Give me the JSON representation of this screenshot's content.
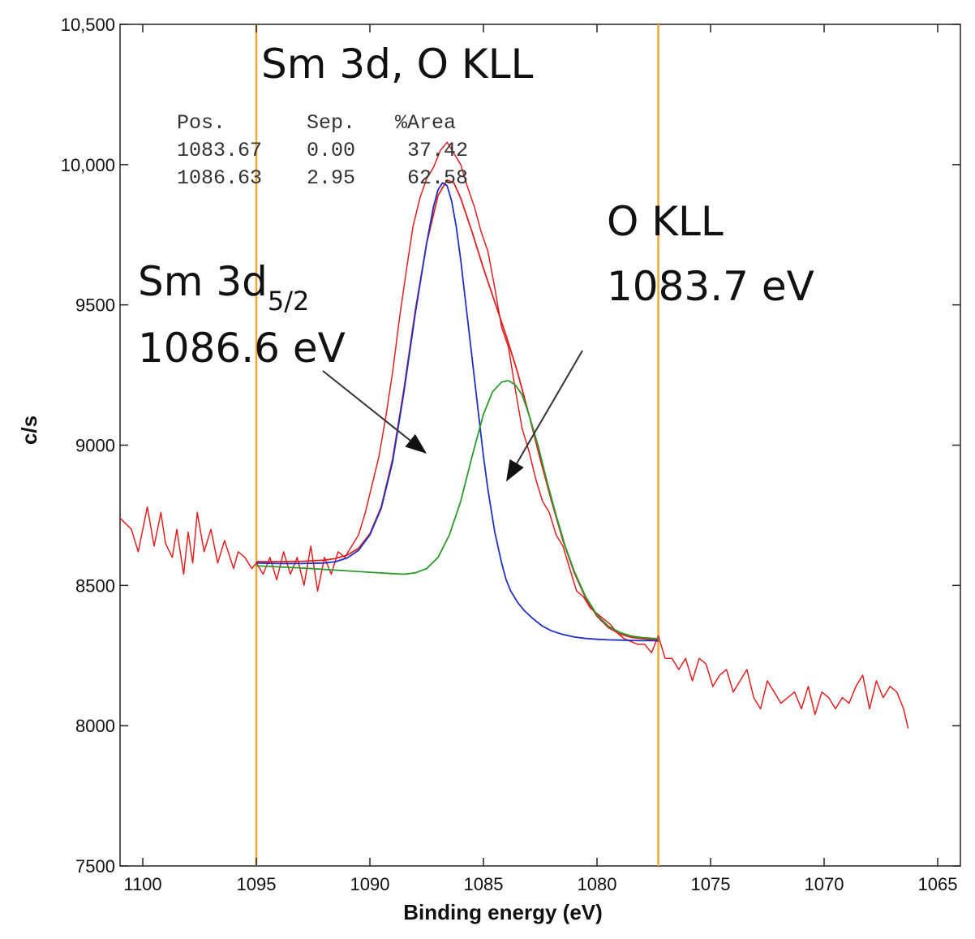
{
  "chart_data": {
    "type": "line",
    "title": "Sm 3d, O KLL",
    "xlabel": "Binding energy (eV)",
    "ylabel": "c/s",
    "xlim": [
      1101,
      1064
    ],
    "ylim": [
      7500,
      10500
    ],
    "x_reversed": true,
    "xticks": [
      1100,
      1095,
      1090,
      1085,
      1080,
      1075,
      1070,
      1065
    ],
    "yticks": [
      7500,
      8000,
      8500,
      9000,
      9500,
      10000,
      10500
    ],
    "ytick_labels": [
      "7500",
      "8000",
      "8500",
      "9000",
      "9500",
      "10,000",
      "10,500"
    ],
    "grid": false,
    "region_markers": [
      1095,
      1077.3
    ],
    "region_marker_color": "#f0a830",
    "fit_table": {
      "headers": [
        "Pos.",
        "Sep.",
        "%Area"
      ],
      "rows": [
        [
          "1083.67",
          "0.00",
          "37.42"
        ],
        [
          "1086.63",
          "2.95",
          "62.58"
        ]
      ]
    },
    "annotations": [
      {
        "text": "Sm 3d",
        "subscript": "5/2",
        "value": "1086.6 eV",
        "arrow_to": [
          1087.5,
          8970
        ]
      },
      {
        "text": "O KLL",
        "value": "1083.7 eV",
        "arrow_to": [
          1084,
          8870
        ]
      }
    ],
    "series": [
      {
        "role": "measured",
        "color": "#e02020",
        "x": [
          1101,
          1100.5,
          1100.2,
          1099.8,
          1099.5,
          1099.2,
          1099,
          1098.7,
          1098.5,
          1098.2,
          1098,
          1097.8,
          1097.6,
          1097.3,
          1097,
          1096.7,
          1096.4,
          1096,
          1095.8,
          1095.5,
          1095.2,
          1095,
          1094.7,
          1094.4,
          1094.1,
          1093.8,
          1093.5,
          1093.2,
          1092.9,
          1092.6,
          1092.3,
          1092,
          1091.7,
          1091.4,
          1091.1,
          1090.8,
          1090.5,
          1090.2,
          1089.9,
          1089.6,
          1089.3,
          1089,
          1088.7,
          1088.4,
          1088.1,
          1087.8,
          1087.5,
          1087.2,
          1086.9,
          1086.6,
          1086.3,
          1086,
          1085.7,
          1085.4,
          1085.1,
          1084.8,
          1084.5,
          1084.2,
          1083.9,
          1083.6,
          1083.3,
          1083,
          1082.7,
          1082.4,
          1082.1,
          1081.8,
          1081.5,
          1081.2,
          1080.9,
          1080.6,
          1080.3,
          1080,
          1079.7,
          1079.4,
          1079.1,
          1078.8,
          1078.5,
          1078.2,
          1077.9,
          1077.6,
          1077.3,
          1077,
          1076.7,
          1076.4,
          1076.1,
          1075.8,
          1075.5,
          1075.2,
          1074.9,
          1074.6,
          1074.3,
          1074,
          1073.7,
          1073.4,
          1073.1,
          1072.8,
          1072.5,
          1072.2,
          1071.9,
          1071.6,
          1071.3,
          1071,
          1070.7,
          1070.4,
          1070.1,
          1069.8,
          1069.5,
          1069.2,
          1068.9,
          1068.6,
          1068.3,
          1068,
          1067.7,
          1067.4,
          1067.1,
          1066.8,
          1066.5,
          1066.3
        ],
        "y": [
          8740,
          8700,
          8620,
          8780,
          8640,
          8760,
          8650,
          8600,
          8700,
          8540,
          8690,
          8580,
          8760,
          8620,
          8700,
          8580,
          8660,
          8560,
          8620,
          8600,
          8560,
          8580,
          8540,
          8600,
          8520,
          8620,
          8540,
          8600,
          8500,
          8640,
          8480,
          8600,
          8540,
          8620,
          8600,
          8640,
          8680,
          8760,
          8860,
          8960,
          9100,
          9260,
          9450,
          9620,
          9780,
          9880,
          9950,
          9990,
          10050,
          10080,
          10040,
          10000,
          9920,
          9850,
          9760,
          9690,
          9560,
          9420,
          9350,
          9200,
          9060,
          8980,
          8880,
          8800,
          8760,
          8680,
          8640,
          8560,
          8480,
          8460,
          8420,
          8400,
          8380,
          8360,
          8330,
          8310,
          8300,
          8290,
          8290,
          8260,
          8320,
          8240,
          8240,
          8200,
          8240,
          8160,
          8240,
          8220,
          8140,
          8180,
          8200,
          8120,
          8160,
          8200,
          8100,
          8060,
          8160,
          8120,
          8080,
          8100,
          8120,
          8060,
          8140,
          8040,
          8120,
          8100,
          8060,
          8100,
          8080,
          8140,
          8180,
          8060,
          8160,
          8100,
          8140,
          8120,
          8060,
          7990
        ]
      },
      {
        "role": "envelope",
        "color": "#e02020",
        "x": [
          1095,
          1094,
          1093,
          1092,
          1091.5,
          1091,
          1090.5,
          1090,
          1089.5,
          1089,
          1088.5,
          1088,
          1087.5,
          1087,
          1086.6,
          1086.3,
          1086,
          1085.5,
          1085,
          1084.5,
          1084,
          1083.5,
          1083,
          1082.5,
          1082,
          1081.5,
          1081,
          1080.5,
          1080,
          1079.5,
          1079,
          1078.5,
          1078,
          1077.3
        ],
        "y": [
          8585,
          8585,
          8586,
          8590,
          8596,
          8608,
          8632,
          8684,
          8780,
          8950,
          9200,
          9480,
          9720,
          9890,
          9945,
          9935,
          9880,
          9760,
          9630,
          9510,
          9390,
          9260,
          9110,
          8950,
          8800,
          8660,
          8545,
          8455,
          8390,
          8350,
          8327,
          8315,
          8310,
          8305
        ]
      },
      {
        "role": "component",
        "name": "Sm 3d5/2",
        "color": "#2030c0",
        "x": [
          1095,
          1094,
          1093,
          1092,
          1091.5,
          1091,
          1090.5,
          1090,
          1089.5,
          1089,
          1088.5,
          1088,
          1087.5,
          1087.2,
          1087,
          1086.8,
          1086.6,
          1086.4,
          1086.2,
          1086,
          1085.8,
          1085.6,
          1085.4,
          1085.2,
          1085,
          1084.8,
          1084.5,
          1084.2,
          1084,
          1083.8,
          1083.5,
          1083.2,
          1082.8,
          1082.4,
          1082,
          1081.5,
          1081,
          1080.5,
          1080,
          1079.5,
          1079,
          1078.5,
          1078,
          1077.5,
          1077.3
        ],
        "y": [
          8580,
          8578,
          8578,
          8580,
          8585,
          8598,
          8625,
          8680,
          8775,
          8940,
          9190,
          9470,
          9720,
          9850,
          9910,
          9935,
          9925,
          9870,
          9780,
          9660,
          9520,
          9380,
          9240,
          9100,
          8960,
          8840,
          8690,
          8580,
          8520,
          8480,
          8440,
          8410,
          8380,
          8355,
          8338,
          8325,
          8316,
          8311,
          8308,
          8306,
          8305,
          8304,
          8303,
          8303,
          8302
        ]
      },
      {
        "role": "component",
        "name": "O KLL",
        "color": "#2a9a2a",
        "x": [
          1095,
          1094,
          1093,
          1092,
          1091,
          1090,
          1089,
          1088.5,
          1088,
          1087.5,
          1087,
          1086.5,
          1086,
          1085.5,
          1085,
          1084.6,
          1084.2,
          1083.9,
          1083.6,
          1083.3,
          1083,
          1082.6,
          1082.2,
          1081.8,
          1081.4,
          1081,
          1080.5,
          1080,
          1079.5,
          1079,
          1078.5,
          1078,
          1077.3
        ],
        "y": [
          8570,
          8566,
          8562,
          8557,
          8552,
          8547,
          8542,
          8540,
          8545,
          8560,
          8600,
          8680,
          8800,
          8960,
          9110,
          9190,
          9225,
          9230,
          9215,
          9180,
          9110,
          9000,
          8870,
          8750,
          8640,
          8550,
          8460,
          8395,
          8355,
          8333,
          8320,
          8314,
          8310
        ]
      }
    ]
  }
}
